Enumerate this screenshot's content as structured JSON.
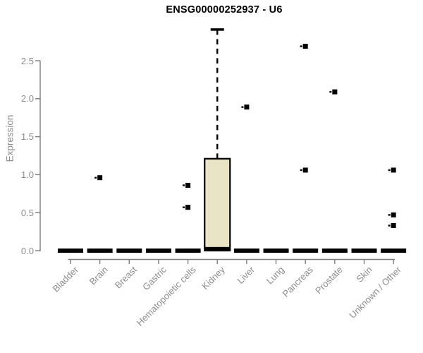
{
  "chart_data": {
    "type": "boxplot",
    "title": "ENSG00000252937 - U6",
    "ylabel": "Expression",
    "xlabel": "",
    "ylim": [
      0,
      2.95
    ],
    "yticks": [
      0.0,
      0.5,
      1.0,
      1.5,
      2.0,
      2.5
    ],
    "ytick_labels": [
      "0.0",
      "0.5",
      "1.0",
      "1.5",
      "2.0",
      "2.5"
    ],
    "grid": false,
    "legend": null,
    "categories": [
      "Bladder",
      "Brain",
      "Breast",
      "Gastric",
      "Hematopoietic cells",
      "Kidney",
      "Liver",
      "Lung",
      "Pancreas",
      "Prostate",
      "Skin",
      "Unknown / Other"
    ],
    "boxes": [
      {
        "category": "Bladder",
        "min": 0,
        "q1": 0,
        "median": 0,
        "q3": 0,
        "max": 0,
        "outliers": []
      },
      {
        "category": "Brain",
        "min": 0,
        "q1": 0,
        "median": 0,
        "q3": 0,
        "max": 0,
        "outliers": [
          0.96
        ]
      },
      {
        "category": "Breast",
        "min": 0,
        "q1": 0,
        "median": 0,
        "q3": 0,
        "max": 0,
        "outliers": []
      },
      {
        "category": "Gastric",
        "min": 0,
        "q1": 0,
        "median": 0,
        "q3": 0,
        "max": 0,
        "outliers": []
      },
      {
        "category": "Hematopoietic cells",
        "min": 0,
        "q1": 0,
        "median": 0,
        "q3": 0,
        "max": 0,
        "outliers": [
          0.86,
          0.57
        ]
      },
      {
        "category": "Kidney",
        "min": 0,
        "q1": 0,
        "median": 0.02,
        "q3": 1.21,
        "max": 2.91,
        "outliers": []
      },
      {
        "category": "Liver",
        "min": 0,
        "q1": 0,
        "median": 0,
        "q3": 0,
        "max": 0,
        "outliers": [
          1.89
        ]
      },
      {
        "category": "Lung",
        "min": 0,
        "q1": 0,
        "median": 0,
        "q3": 0,
        "max": 0,
        "outliers": []
      },
      {
        "category": "Pancreas",
        "min": 0,
        "q1": 0,
        "median": 0,
        "q3": 0,
        "max": 0,
        "outliers": [
          2.69,
          1.06
        ]
      },
      {
        "category": "Prostate",
        "min": 0,
        "q1": 0,
        "median": 0,
        "q3": 0,
        "max": 0,
        "outliers": [
          2.09
        ]
      },
      {
        "category": "Skin",
        "min": 0,
        "q1": 0,
        "median": 0,
        "q3": 0,
        "max": 0,
        "outliers": []
      },
      {
        "category": "Unknown / Other",
        "min": 0,
        "q1": 0,
        "median": 0,
        "q3": 0,
        "max": 0,
        "outliers": [
          1.06,
          0.47,
          0.33
        ]
      }
    ],
    "style": {
      "box_fill": "#EAE4C6",
      "box_stroke": "#000000",
      "median_color": "#000000",
      "whisker_color": "#000000",
      "whisker_style": "dashed",
      "outlier_marker": "filled-square",
      "outlier_color": "#000000",
      "axis_color": "#7d7d7d",
      "tick_label_color": "#8c8c8c",
      "title_color": "#000000",
      "background": "#ffffff"
    }
  }
}
